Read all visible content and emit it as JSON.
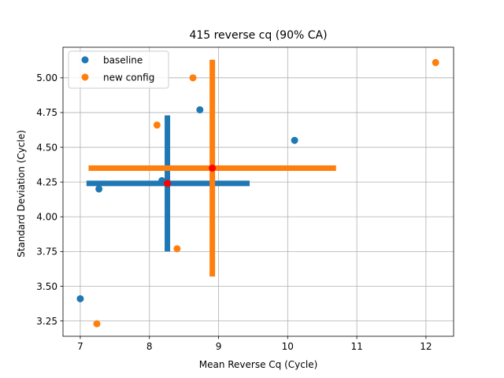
{
  "chart_data": {
    "type": "scatter",
    "title": "415 reverse cq (90% CA)",
    "xlabel": "Mean Reverse Cq (Cycle)",
    "ylabel": "Standard Deviation (Cycle)",
    "xlim": [
      6.75,
      12.4
    ],
    "ylim": [
      3.14,
      5.22
    ],
    "xticks": [
      7,
      8,
      9,
      10,
      11,
      12
    ],
    "yticks": [
      3.25,
      3.5,
      3.75,
      4.0,
      4.25,
      4.5,
      4.75,
      5.0
    ],
    "ytick_labels": [
      "3.25",
      "3.50",
      "3.75",
      "4.00",
      "4.25",
      "4.50",
      "4.75",
      "5.00"
    ],
    "grid": true,
    "legend": {
      "position": "top-left",
      "entries": [
        "baseline",
        "new config"
      ]
    },
    "series": [
      {
        "name": "baseline",
        "color": "#1f77b4",
        "points": [
          {
            "x": 7.0,
            "y": 3.41
          },
          {
            "x": 7.27,
            "y": 4.2
          },
          {
            "x": 8.18,
            "y": 4.26
          },
          {
            "x": 8.73,
            "y": 4.77
          },
          {
            "x": 10.1,
            "y": 4.55
          }
        ],
        "center": {
          "x": 8.26,
          "y": 4.24
        },
        "x_interval": [
          7.09,
          9.45
        ],
        "y_interval": [
          3.75,
          4.73
        ]
      },
      {
        "name": "new config",
        "color": "#ff7f0e",
        "points": [
          {
            "x": 7.24,
            "y": 3.23
          },
          {
            "x": 8.11,
            "y": 4.66
          },
          {
            "x": 8.4,
            "y": 3.77
          },
          {
            "x": 8.63,
            "y": 5.0
          },
          {
            "x": 12.14,
            "y": 5.11
          }
        ],
        "center": {
          "x": 8.91,
          "y": 4.35
        },
        "x_interval": [
          7.12,
          10.7
        ],
        "y_interval": [
          3.57,
          5.13
        ]
      }
    ],
    "center_color": "#ff0000"
  }
}
